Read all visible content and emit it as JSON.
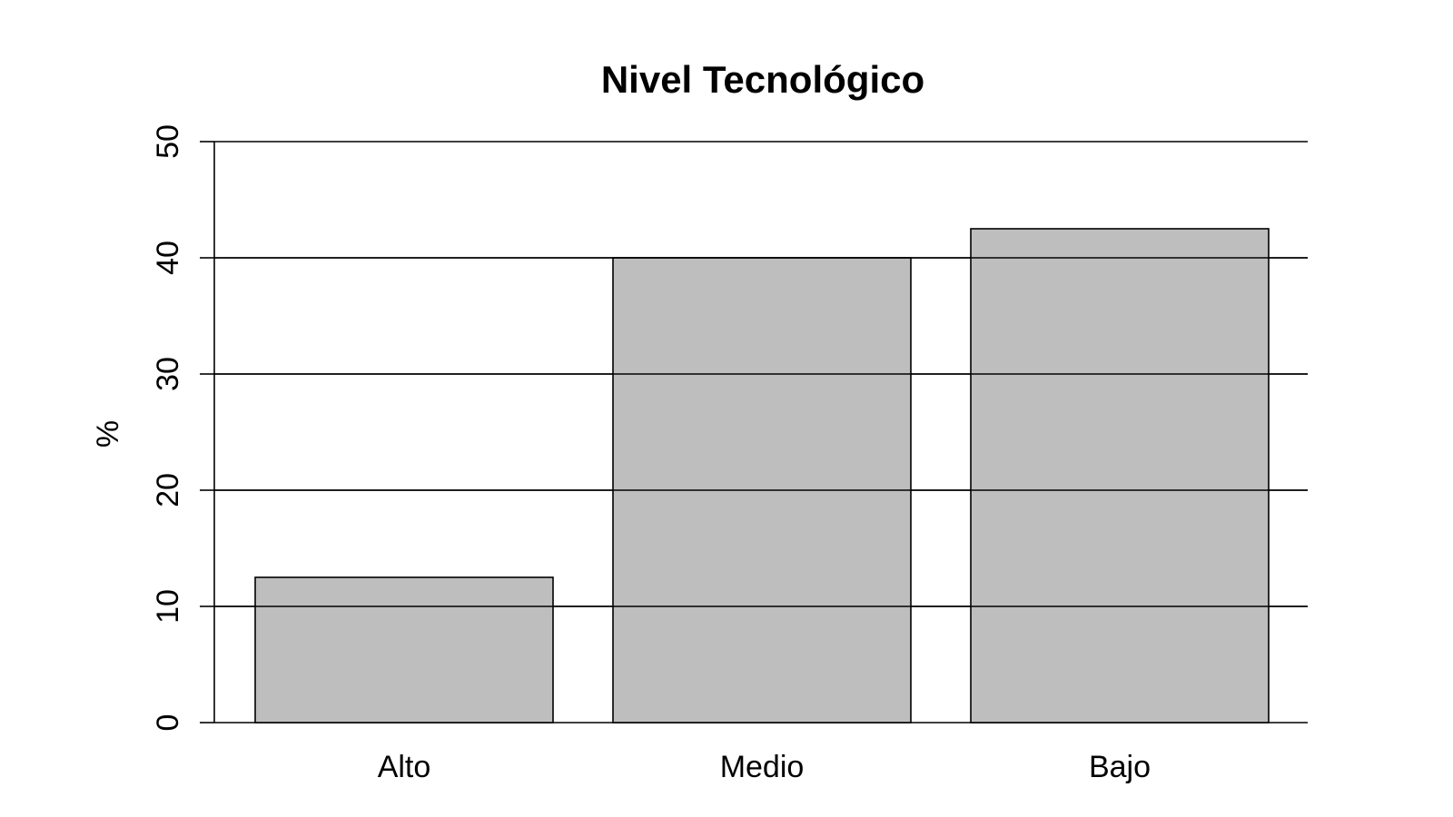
{
  "chart_data": {
    "type": "bar",
    "title": "Nivel Tecnológico",
    "xlabel": "",
    "ylabel": "%",
    "categories": [
      "Alto",
      "Medio",
      "Bajo"
    ],
    "values": [
      12.5,
      40,
      42.5
    ],
    "ylim": [
      0,
      50
    ],
    "yticks": [
      0,
      10,
      20,
      30,
      40,
      50
    ],
    "ytick_labels": [
      "0",
      "10",
      "20",
      "30",
      "40",
      "50"
    ],
    "grid": "horizontal",
    "legend": "none",
    "colors": {
      "bar_fill": "#bebebe",
      "bar_stroke": "#000000",
      "grid": "#000000",
      "axis": "#000000",
      "background": "#ffffff"
    }
  }
}
